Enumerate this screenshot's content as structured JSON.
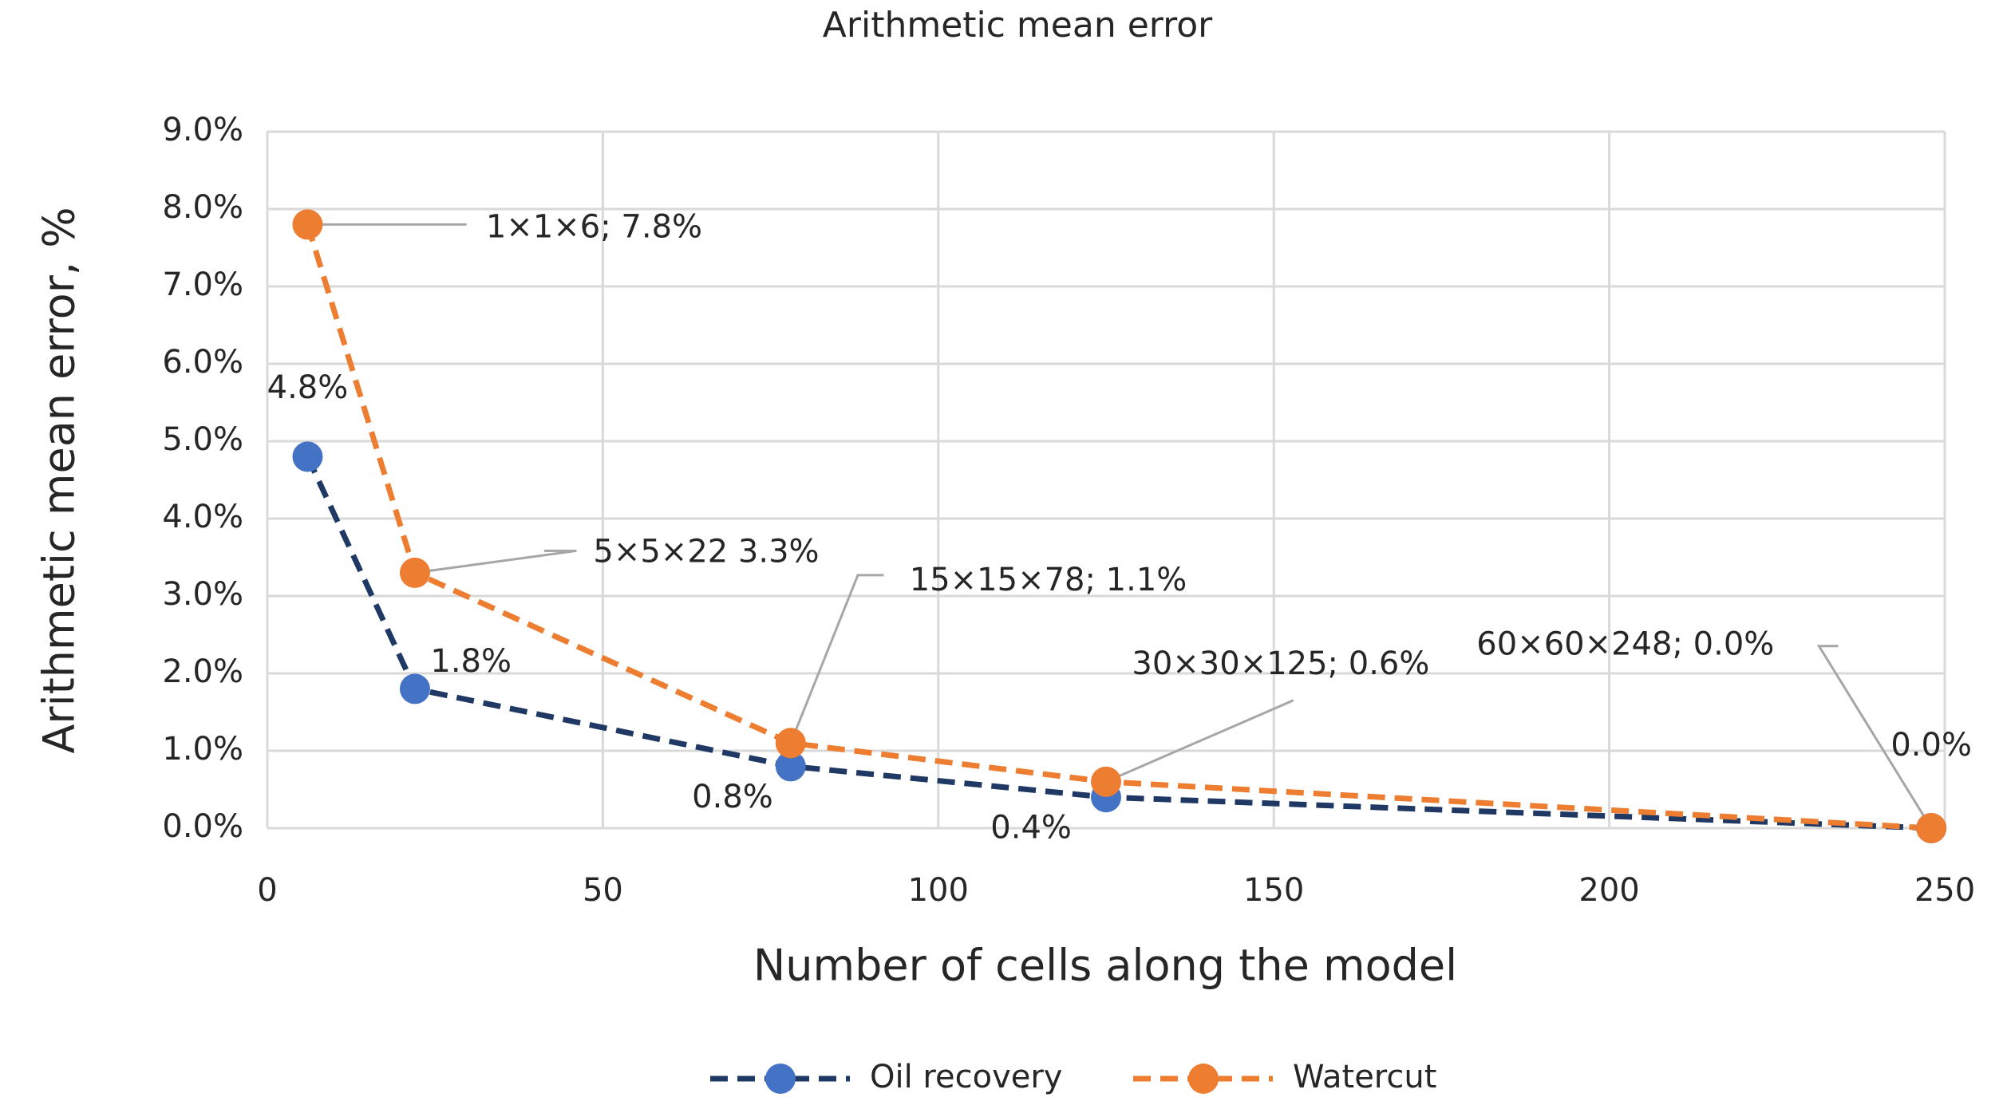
{
  "chart_data": {
    "type": "line",
    "title": "Arithmetic mean error",
    "x_label": "Number of cells along the model",
    "y_label": "Arithmetic mean error, %",
    "x": [
      6,
      22,
      78,
      125,
      248
    ],
    "series": [
      {
        "name": "Oil recovery",
        "color": "#1f3864",
        "marker_color": "#4472c4",
        "values": [
          4.8,
          1.8,
          0.8,
          0.4,
          0.0
        ],
        "value_labels": [
          "4.8%",
          "1.8%",
          "0.8%",
          "0.4%",
          "0.0%"
        ]
      },
      {
        "name": "Watercut",
        "color": "#ed7d31",
        "marker_color": "#ed7d31",
        "values": [
          7.8,
          3.3,
          1.1,
          0.6,
          0.0
        ],
        "value_labels": [
          "1×1×6; 7.8%",
          "5×5×22 3.3%",
          "15×15×78; 1.1%",
          "30×30×125; 0.6%",
          "60×60×248; 0.0%"
        ]
      }
    ],
    "xlim": [
      0,
      250
    ],
    "xticks": [
      0,
      50,
      100,
      150,
      200,
      250
    ],
    "ylim": [
      0,
      9
    ],
    "yticks": [
      {
        "value": 0,
        "label": "0.0%"
      },
      {
        "value": 1,
        "label": "1.0%"
      },
      {
        "value": 2,
        "label": "2.0%"
      },
      {
        "value": 3,
        "label": "3.0%"
      },
      {
        "value": 4,
        "label": "4.0%"
      },
      {
        "value": 5,
        "label": "5.0%"
      },
      {
        "value": 6,
        "label": "6.0%"
      },
      {
        "value": 7,
        "label": "7.0%"
      },
      {
        "value": 8,
        "label": "8.0%"
      },
      {
        "value": 9,
        "label": "9.0%"
      }
    ],
    "grid": true,
    "legend": "bottom"
  }
}
